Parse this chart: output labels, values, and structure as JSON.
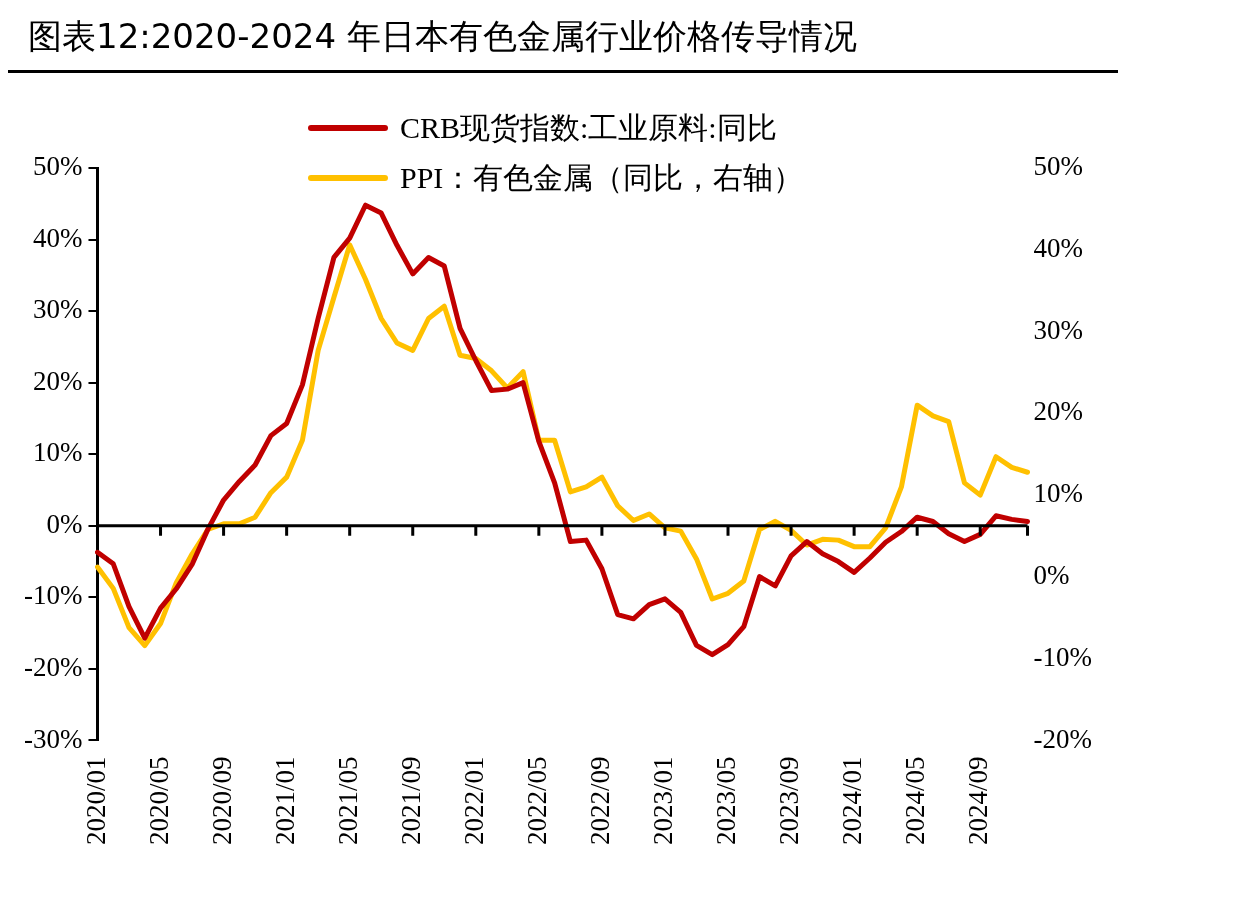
{
  "chart_data": {
    "type": "line",
    "title": "图表12:2020-2024 年日本有色金属行业价格传导情况",
    "categories": [
      "2020/01",
      null,
      null,
      null,
      "2020/05",
      null,
      null,
      null,
      "2020/09",
      null,
      null,
      null,
      "2021/01",
      null,
      null,
      null,
      "2021/05",
      null,
      null,
      null,
      "2021/09",
      null,
      null,
      null,
      "2022/01",
      null,
      null,
      null,
      "2022/05",
      null,
      null,
      null,
      "2022/09",
      null,
      null,
      null,
      "2023/01",
      null,
      null,
      null,
      "2023/05",
      null,
      null,
      null,
      "2023/09",
      null,
      null,
      null,
      "2024/01",
      null,
      null,
      null,
      "2024/05",
      null,
      null,
      null,
      "2024/09",
      null,
      null,
      null
    ],
    "series": [
      {
        "name": "CRB现货指数:工业原料:同比",
        "color": "#c00000",
        "values": [
          -3.7,
          -5.3,
          -11.3,
          -15.7,
          -11.5,
          -8.8,
          -5.4,
          -0.5,
          3.6,
          6.2,
          8.5,
          12.6,
          14.3,
          19.7,
          29,
          37.5,
          40.2,
          44.8,
          43.7,
          39.2,
          35.2,
          37.5,
          36.3,
          27.6,
          23.1,
          18.9,
          19.1,
          20,
          11.8,
          6,
          -2.2,
          -2,
          -6,
          -12.4,
          -13,
          -11,
          -10.2,
          -12.1,
          -16.7,
          -18,
          -16.6,
          -14.1,
          -7.1,
          -8.4,
          -4.2,
          -2.2,
          -3.9,
          -5,
          -6.5,
          -4.5,
          -2.3,
          -0.8,
          1.2,
          0.6,
          -1.1,
          -2.2,
          -1.2,
          1.4,
          0.9,
          0.6
        ]
      },
      {
        "name": "PPI：有色金属（同比，右轴）",
        "color": "#ffc000",
        "axis": "y2",
        "values": [
          1.2,
          -1.4,
          -6.2,
          -8.4,
          -5.7,
          -0.7,
          2.8,
          5.8,
          6.5,
          6.5,
          7.3,
          10.3,
          12.2,
          16.7,
          27.7,
          34.2,
          40.6,
          36.4,
          31.6,
          28.6,
          27.7,
          31.6,
          33.1,
          27.1,
          26.7,
          25.2,
          23.1,
          25.1,
          16.7,
          16.7,
          10.4,
          11,
          12.2,
          8.7,
          6.9,
          7.7,
          6,
          5.6,
          2.2,
          -2.7,
          -2,
          -0.5,
          5.8,
          6.8,
          5.7,
          3.9,
          4.6,
          4.5,
          3.7,
          3.7,
          6,
          11,
          21,
          19.7,
          19,
          11.5,
          10,
          14.7,
          13.4,
          12.8
        ]
      }
    ],
    "ylim": [
      -30,
      50
    ],
    "yticks": [
      {
        "value": -30,
        "label": "-30%"
      },
      {
        "value": -20,
        "label": "-20%"
      },
      {
        "value": -10,
        "label": "-10%"
      },
      {
        "value": 0,
        "label": "0%"
      },
      {
        "value": 10,
        "label": "10%"
      },
      {
        "value": 20,
        "label": "20%"
      },
      {
        "value": 30,
        "label": "30%"
      },
      {
        "value": 40,
        "label": "40%"
      },
      {
        "value": 50,
        "label": "50%"
      }
    ],
    "y2lim": [
      -20,
      50
    ],
    "y2ticks": [
      {
        "value": -20,
        "label": "-20%"
      },
      {
        "value": -10,
        "label": "-10%"
      },
      {
        "value": 0,
        "label": "0%"
      },
      {
        "value": 10,
        "label": "10%"
      },
      {
        "value": 20,
        "label": "20%"
      },
      {
        "value": 30,
        "label": "30%"
      },
      {
        "value": 40,
        "label": "40%"
      },
      {
        "value": 50,
        "label": "50%"
      }
    ],
    "ref_lines": [
      {
        "axis": "y",
        "value": 0,
        "color": "#000000"
      }
    ],
    "legend": "top",
    "marker": "none",
    "line_style": "solid"
  }
}
